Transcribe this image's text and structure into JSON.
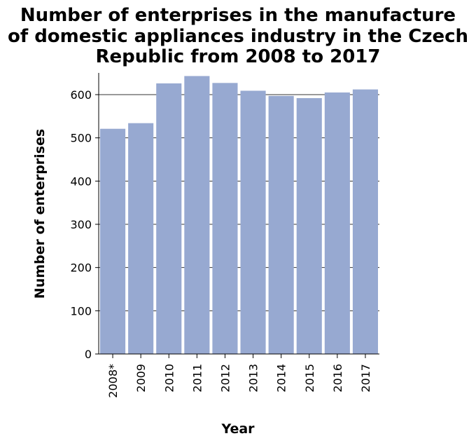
{
  "chart_data": {
    "type": "bar",
    "title_lines": [
      "Number of enterprises in the manufacture",
      "of domestic appliances industry in the Czech",
      "Republic from 2008 to 2017"
    ],
    "xlabel": "Year",
    "ylabel": "Number of enterprises",
    "categories": [
      "2008*",
      "2009",
      "2010",
      "2011",
      "2012",
      "2013",
      "2014",
      "2015",
      "2016",
      "2017"
    ],
    "values": [
      521,
      534,
      626,
      643,
      627,
      609,
      597,
      592,
      605,
      612
    ],
    "ylim": [
      0,
      650
    ],
    "yticks": [
      0,
      100,
      200,
      300,
      400,
      500,
      600
    ],
    "grid": true,
    "bar_color": "#97a9d1",
    "grid_color": "#333333"
  }
}
